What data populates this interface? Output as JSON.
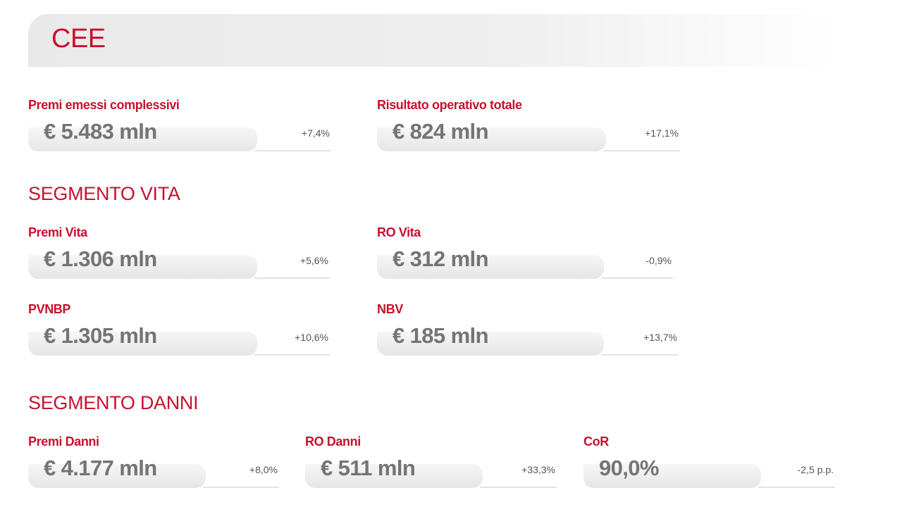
{
  "header": {
    "title": "CEE"
  },
  "overview": {
    "metrics": [
      {
        "label": "Premi emessi complessivi",
        "value": "€ 5.483 mln",
        "change": "+7,4%"
      },
      {
        "label": "Risultato operativo totale",
        "value": "€ 824 mln",
        "change": "+17,1%"
      }
    ]
  },
  "segments": [
    {
      "title": "SEGMENTO VITA",
      "metrics": [
        {
          "label": "Premi Vita",
          "value": "€ 1.306 mln",
          "change": "+5,6%"
        },
        {
          "label": "RO Vita",
          "value": "€ 312 mln",
          "change": "-0,9%"
        },
        {
          "label": "PVNBP",
          "value": "€ 1.305 mln",
          "change": "+10,6%"
        },
        {
          "label": "NBV",
          "value": "€ 185 mln",
          "change": "+13,7%"
        }
      ]
    },
    {
      "title": "SEGMENTO DANNI",
      "metrics": [
        {
          "label": "Premi Danni",
          "value": "€ 4.177 mln",
          "change": "+8,0%"
        },
        {
          "label": "RO Danni",
          "value": "€ 511 mln",
          "change": "+33,3%"
        },
        {
          "label": "CoR",
          "value": "90,0%",
          "change": "-2,5 p.p."
        }
      ]
    }
  ]
}
